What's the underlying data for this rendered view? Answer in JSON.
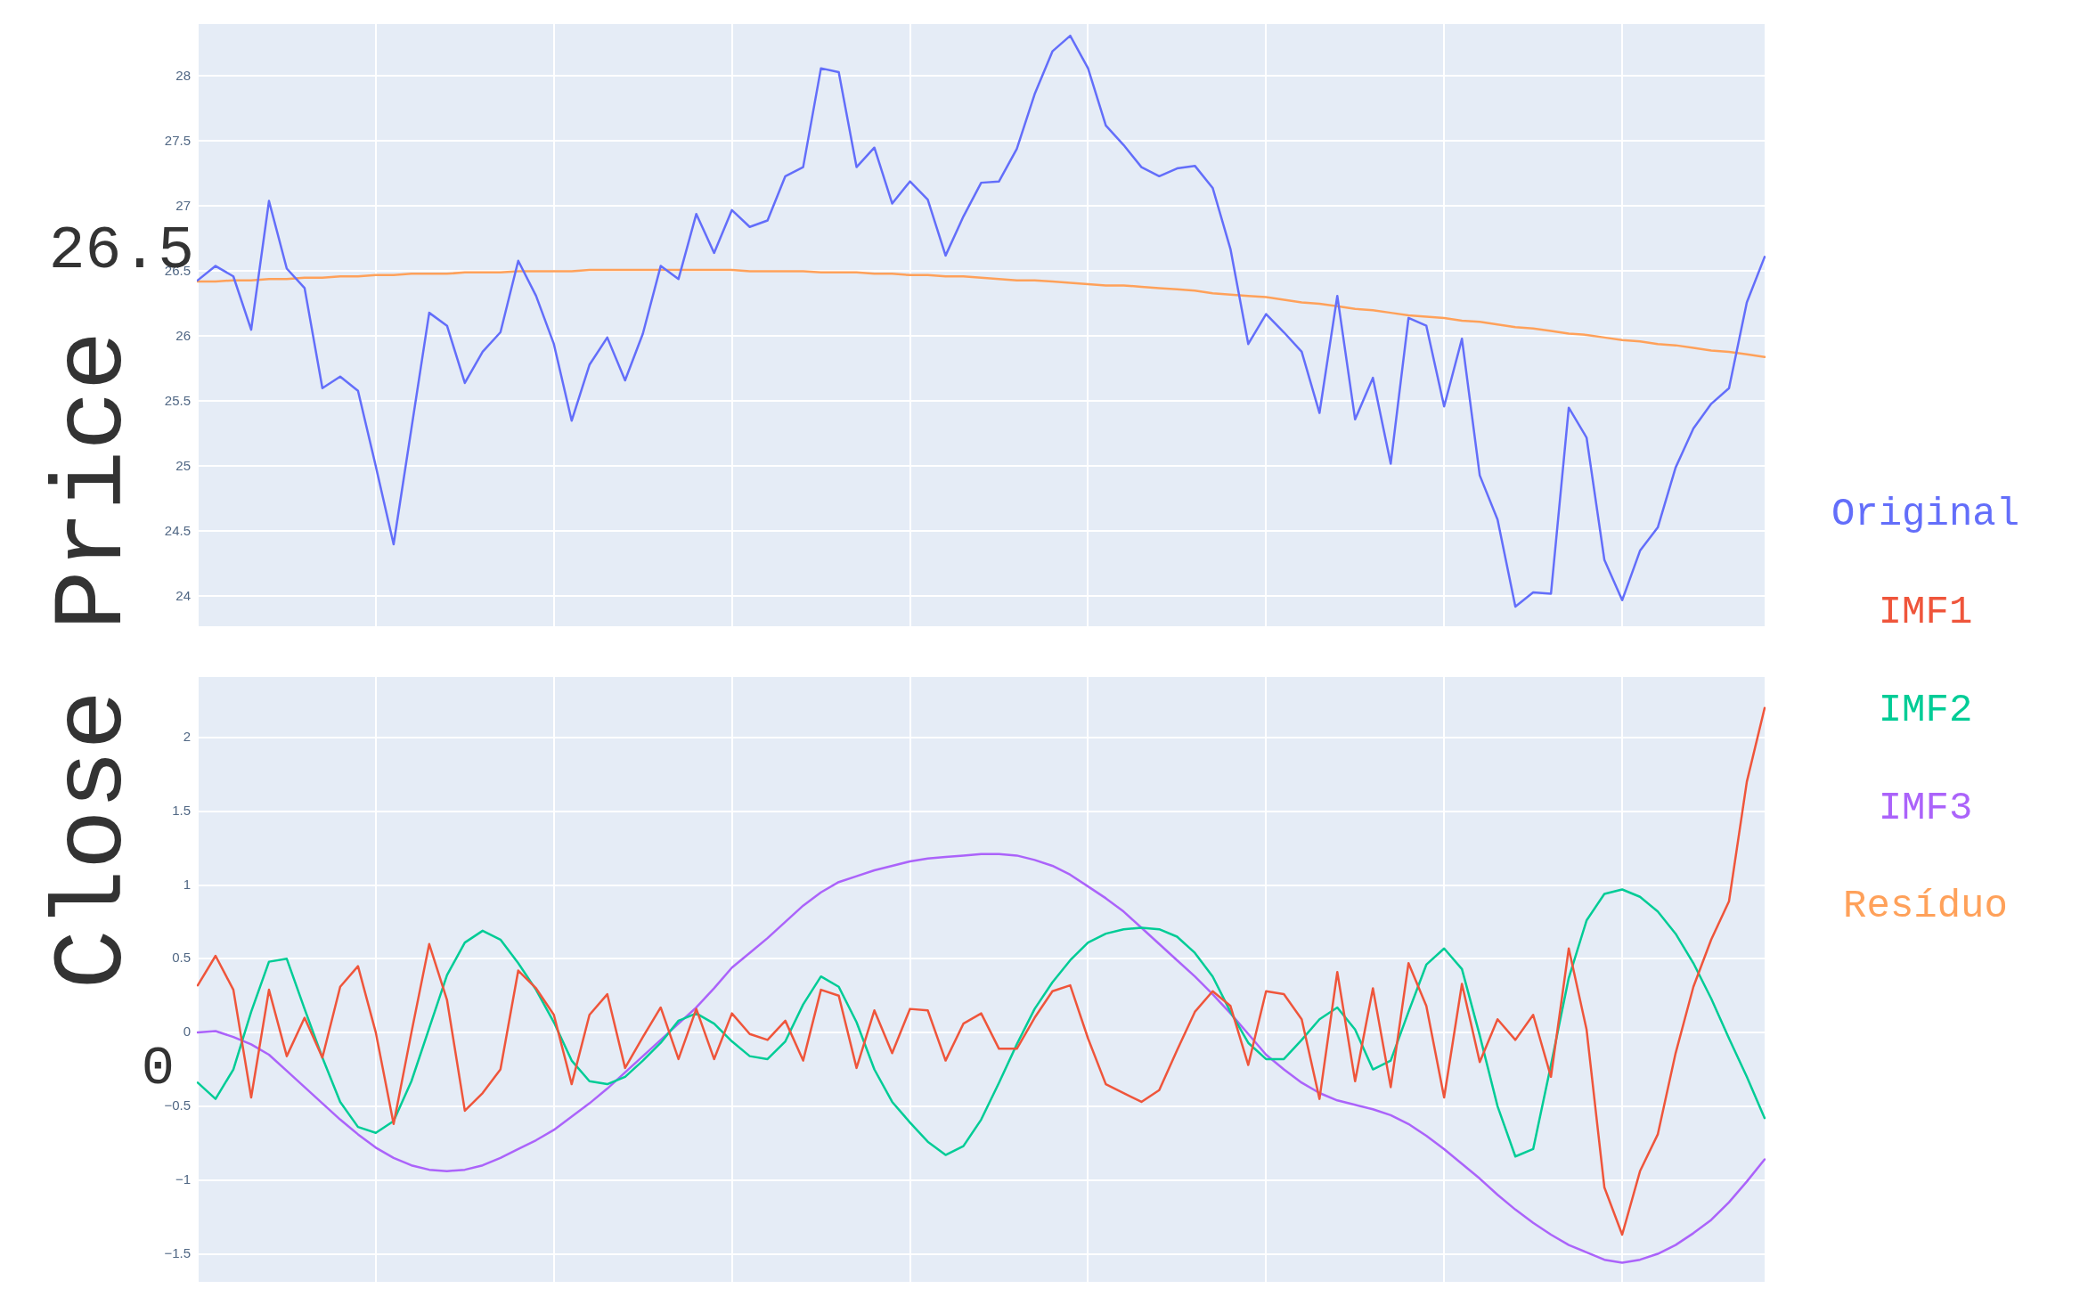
{
  "chart_data": [
    {
      "type": "line",
      "ylabel": "Close Price",
      "annotations": [
        "26.5"
      ],
      "categories": [
        null,
        null,
        null,
        null,
        null,
        null,
        null,
        null,
        null,
        null,
        null,
        null,
        null,
        null,
        null,
        null,
        null,
        null,
        null,
        null,
        null,
        null,
        null,
        null,
        null,
        null,
        null,
        null,
        null,
        null,
        null,
        null,
        null,
        null,
        null,
        null,
        null,
        null,
        null,
        null,
        null,
        null,
        null,
        null,
        null,
        null,
        null,
        null,
        null,
        null,
        null,
        null,
        null,
        null,
        null,
        null,
        null,
        null,
        null,
        null,
        null,
        null,
        null,
        null,
        null,
        null,
        null,
        null,
        null,
        null,
        null,
        null,
        null,
        null,
        null,
        null,
        null,
        null,
        null,
        null,
        null,
        null,
        null,
        null,
        null,
        null,
        null,
        null,
        null
      ],
      "series": [
        {
          "name": "Original",
          "color": "#636efa",
          "values": [
            26.43,
            26.54,
            26.46,
            26.05,
            27.04,
            26.52,
            26.37,
            25.6,
            25.69,
            25.58,
            25.0,
            24.4,
            25.29,
            26.18,
            26.08,
            25.64,
            25.88,
            26.03,
            26.58,
            26.31,
            25.94,
            25.35,
            25.78,
            25.99,
            25.66,
            26.02,
            26.54,
            26.44,
            26.94,
            26.64,
            26.97,
            26.84,
            26.89,
            27.23,
            27.3,
            28.06,
            28.03,
            27.3,
            27.45,
            27.02,
            27.19,
            27.05,
            26.62,
            26.92,
            27.18,
            27.19,
            27.44,
            27.86,
            28.19,
            28.31,
            28.06,
            27.62,
            27.47,
            27.3,
            27.23,
            27.29,
            27.31,
            27.14,
            26.67,
            25.94,
            26.17,
            26.03,
            25.88,
            25.41,
            26.31,
            25.36,
            25.68,
            25.02,
            26.14,
            26.08,
            25.46,
            25.98,
            24.93,
            24.59,
            23.92,
            24.03,
            24.02,
            25.45,
            25.22,
            24.28,
            23.97,
            24.35,
            24.53,
            24.99,
            25.29,
            25.48,
            25.6,
            26.26,
            26.61
          ]
        },
        {
          "name": "Resíduo",
          "color": "#ffa15a",
          "values": [
            26.42,
            26.42,
            26.43,
            26.43,
            26.44,
            26.44,
            26.45,
            26.45,
            26.46,
            26.46,
            26.47,
            26.47,
            26.48,
            26.48,
            26.48,
            26.49,
            26.49,
            26.49,
            26.5,
            26.5,
            26.5,
            26.5,
            26.51,
            26.51,
            26.51,
            26.51,
            26.51,
            26.51,
            26.51,
            26.51,
            26.51,
            26.5,
            26.5,
            26.5,
            26.5,
            26.49,
            26.49,
            26.49,
            26.48,
            26.48,
            26.47,
            26.47,
            26.46,
            26.46,
            26.45,
            26.44,
            26.43,
            26.43,
            26.42,
            26.41,
            26.4,
            26.39,
            26.39,
            26.38,
            26.37,
            26.36,
            26.35,
            26.33,
            26.32,
            26.31,
            26.3,
            26.28,
            26.26,
            26.25,
            26.23,
            26.21,
            26.2,
            26.18,
            26.16,
            26.15,
            26.14,
            26.12,
            26.11,
            26.09,
            26.07,
            26.06,
            26.04,
            26.02,
            26.01,
            25.99,
            25.97,
            25.96,
            25.94,
            25.93,
            25.91,
            25.89,
            25.88,
            25.86,
            25.84
          ]
        }
      ],
      "ylim": [
        23.77,
        28.4
      ],
      "yticks": [
        24,
        24.5,
        25,
        25.5,
        26,
        26.5,
        27,
        27.5,
        28
      ],
      "grid": true,
      "legend": "right",
      "tick_labels": "y"
    },
    {
      "type": "line",
      "annotations": [
        "0"
      ],
      "categories": [
        null,
        null,
        null,
        null,
        null,
        null,
        null,
        null,
        null,
        null,
        null,
        null,
        null,
        null,
        null,
        null,
        null,
        null,
        null,
        null,
        null,
        null,
        null,
        null,
        null,
        null,
        null,
        null,
        null,
        null,
        null,
        null,
        null,
        null,
        null,
        null,
        null,
        null,
        null,
        null,
        null,
        null,
        null,
        null,
        null,
        null,
        null,
        null,
        null,
        null,
        null,
        null,
        null,
        null,
        null,
        null,
        null,
        null,
        null,
        null,
        null,
        null,
        null,
        null,
        null,
        null,
        null,
        null,
        null,
        null,
        null,
        null,
        null,
        null,
        null,
        null,
        null,
        null,
        null,
        null,
        null,
        null,
        null,
        null,
        null,
        null,
        null,
        null,
        null
      ],
      "series": [
        {
          "name": "IMF1",
          "color": "#ef553b",
          "values": [
            0.32,
            0.52,
            0.29,
            -0.44,
            0.29,
            -0.16,
            0.1,
            -0.17,
            0.31,
            0.45,
            0.0,
            -0.62,
            0.0,
            0.6,
            0.22,
            -0.53,
            -0.41,
            -0.25,
            0.42,
            0.3,
            0.12,
            -0.35,
            0.12,
            0.26,
            -0.24,
            -0.03,
            0.17,
            -0.18,
            0.16,
            -0.18,
            0.13,
            -0.01,
            -0.05,
            0.08,
            -0.19,
            0.29,
            0.25,
            -0.24,
            0.15,
            -0.14,
            0.16,
            0.15,
            -0.19,
            0.06,
            0.13,
            -0.11,
            -0.11,
            0.1,
            0.28,
            0.32,
            -0.04,
            -0.35,
            -0.41,
            -0.47,
            -0.39,
            -0.12,
            0.14,
            0.28,
            0.18,
            -0.22,
            0.28,
            0.26,
            0.09,
            -0.45,
            0.41,
            -0.33,
            0.3,
            -0.37,
            0.47,
            0.18,
            -0.44,
            0.33,
            -0.2,
            0.09,
            -0.05,
            0.12,
            -0.3,
            0.57,
            0.02,
            -1.05,
            -1.37,
            -0.94,
            -0.69,
            -0.14,
            0.31,
            0.63,
            0.89,
            1.7,
            2.2
          ]
        },
        {
          "name": "IMF2",
          "color": "#00cc96",
          "values": [
            -0.34,
            -0.45,
            -0.25,
            0.14,
            0.48,
            0.5,
            0.16,
            -0.17,
            -0.47,
            -0.64,
            -0.68,
            -0.6,
            -0.33,
            0.03,
            0.39,
            0.61,
            0.69,
            0.63,
            0.47,
            0.29,
            0.07,
            -0.19,
            -0.33,
            -0.35,
            -0.3,
            -0.19,
            -0.07,
            0.08,
            0.13,
            0.06,
            -0.06,
            -0.16,
            -0.18,
            -0.06,
            0.19,
            0.38,
            0.31,
            0.07,
            -0.25,
            -0.47,
            -0.61,
            -0.74,
            -0.83,
            -0.77,
            -0.59,
            -0.34,
            -0.08,
            0.16,
            0.34,
            0.49,
            0.61,
            0.67,
            0.7,
            0.71,
            0.7,
            0.65,
            0.54,
            0.38,
            0.14,
            -0.07,
            -0.18,
            -0.18,
            -0.05,
            0.09,
            0.17,
            0.02,
            -0.25,
            -0.19,
            0.14,
            0.46,
            0.57,
            0.43,
            -0.02,
            -0.5,
            -0.84,
            -0.79,
            -0.22,
            0.37,
            0.76,
            0.94,
            0.97,
            0.92,
            0.82,
            0.67,
            0.47,
            0.23,
            -0.04,
            -0.3,
            -0.58
          ]
        },
        {
          "name": "IMF3",
          "color": "#ab63fa",
          "values": [
            0.0,
            0.01,
            -0.03,
            -0.08,
            -0.15,
            -0.26,
            -0.37,
            -0.48,
            -0.59,
            -0.69,
            -0.78,
            -0.85,
            -0.9,
            -0.93,
            -0.94,
            -0.93,
            -0.9,
            -0.85,
            -0.79,
            -0.73,
            -0.66,
            -0.57,
            -0.48,
            -0.38,
            -0.27,
            -0.16,
            -0.05,
            0.06,
            0.17,
            0.3,
            0.44,
            0.54,
            0.64,
            0.75,
            0.86,
            0.95,
            1.02,
            1.06,
            1.1,
            1.13,
            1.16,
            1.18,
            1.19,
            1.2,
            1.21,
            1.21,
            1.2,
            1.17,
            1.13,
            1.07,
            0.99,
            0.91,
            0.82,
            0.71,
            0.6,
            0.49,
            0.38,
            0.26,
            0.13,
            -0.01,
            -0.15,
            -0.25,
            -0.34,
            -0.41,
            -0.46,
            -0.49,
            -0.52,
            -0.56,
            -0.62,
            -0.7,
            -0.79,
            -0.89,
            -0.99,
            -1.1,
            -1.2,
            -1.29,
            -1.37,
            -1.44,
            -1.49,
            -1.54,
            -1.56,
            -1.54,
            -1.5,
            -1.44,
            -1.36,
            -1.27,
            -1.15,
            -1.01,
            -0.86
          ]
        }
      ],
      "ylim": [
        -1.69,
        2.41
      ],
      "yticks": [
        {
          "value": -1.5,
          "label": "−1.5"
        },
        {
          "value": -1,
          "label": "−1"
        },
        {
          "value": -0.5,
          "label": "−0.5"
        },
        0,
        0.5,
        1,
        1.5,
        2
      ],
      "grid": true,
      "legend": "right",
      "tick_labels": "y"
    }
  ]
}
